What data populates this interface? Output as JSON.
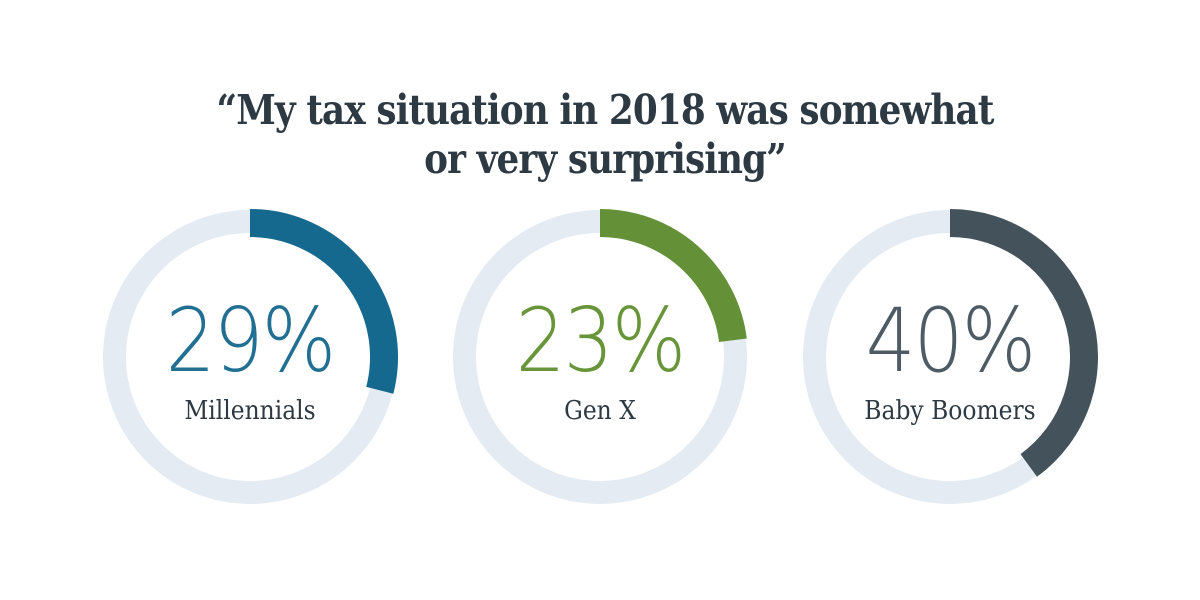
{
  "page": {
    "background": "#ffffff"
  },
  "title": {
    "line1": "“My tax situation in 2018 was somewhat",
    "line2": "or very surprising”",
    "color": "#2d3a43"
  },
  "chart_data": {
    "type": "donut",
    "title": "“My tax situation in 2018 was somewhat or very surprising”",
    "unit": "percent",
    "track_color": "#e4ebf3",
    "label_color": "#2d3a43",
    "start_angle": "12 o'clock",
    "direction": "clockwise",
    "series": [
      {
        "label": "Millennials",
        "value": 29,
        "display": "29%",
        "arc_color": "#16698e",
        "value_color": "#216f92"
      },
      {
        "label": "Gen X",
        "value": 23,
        "display": "23%",
        "arc_color": "#649137",
        "value_color": "#68953a"
      },
      {
        "label": "Baby Boomers",
        "value": 40,
        "display": "40%",
        "arc_color": "#44525b",
        "value_color": "#4d5b64"
      }
    ]
  }
}
